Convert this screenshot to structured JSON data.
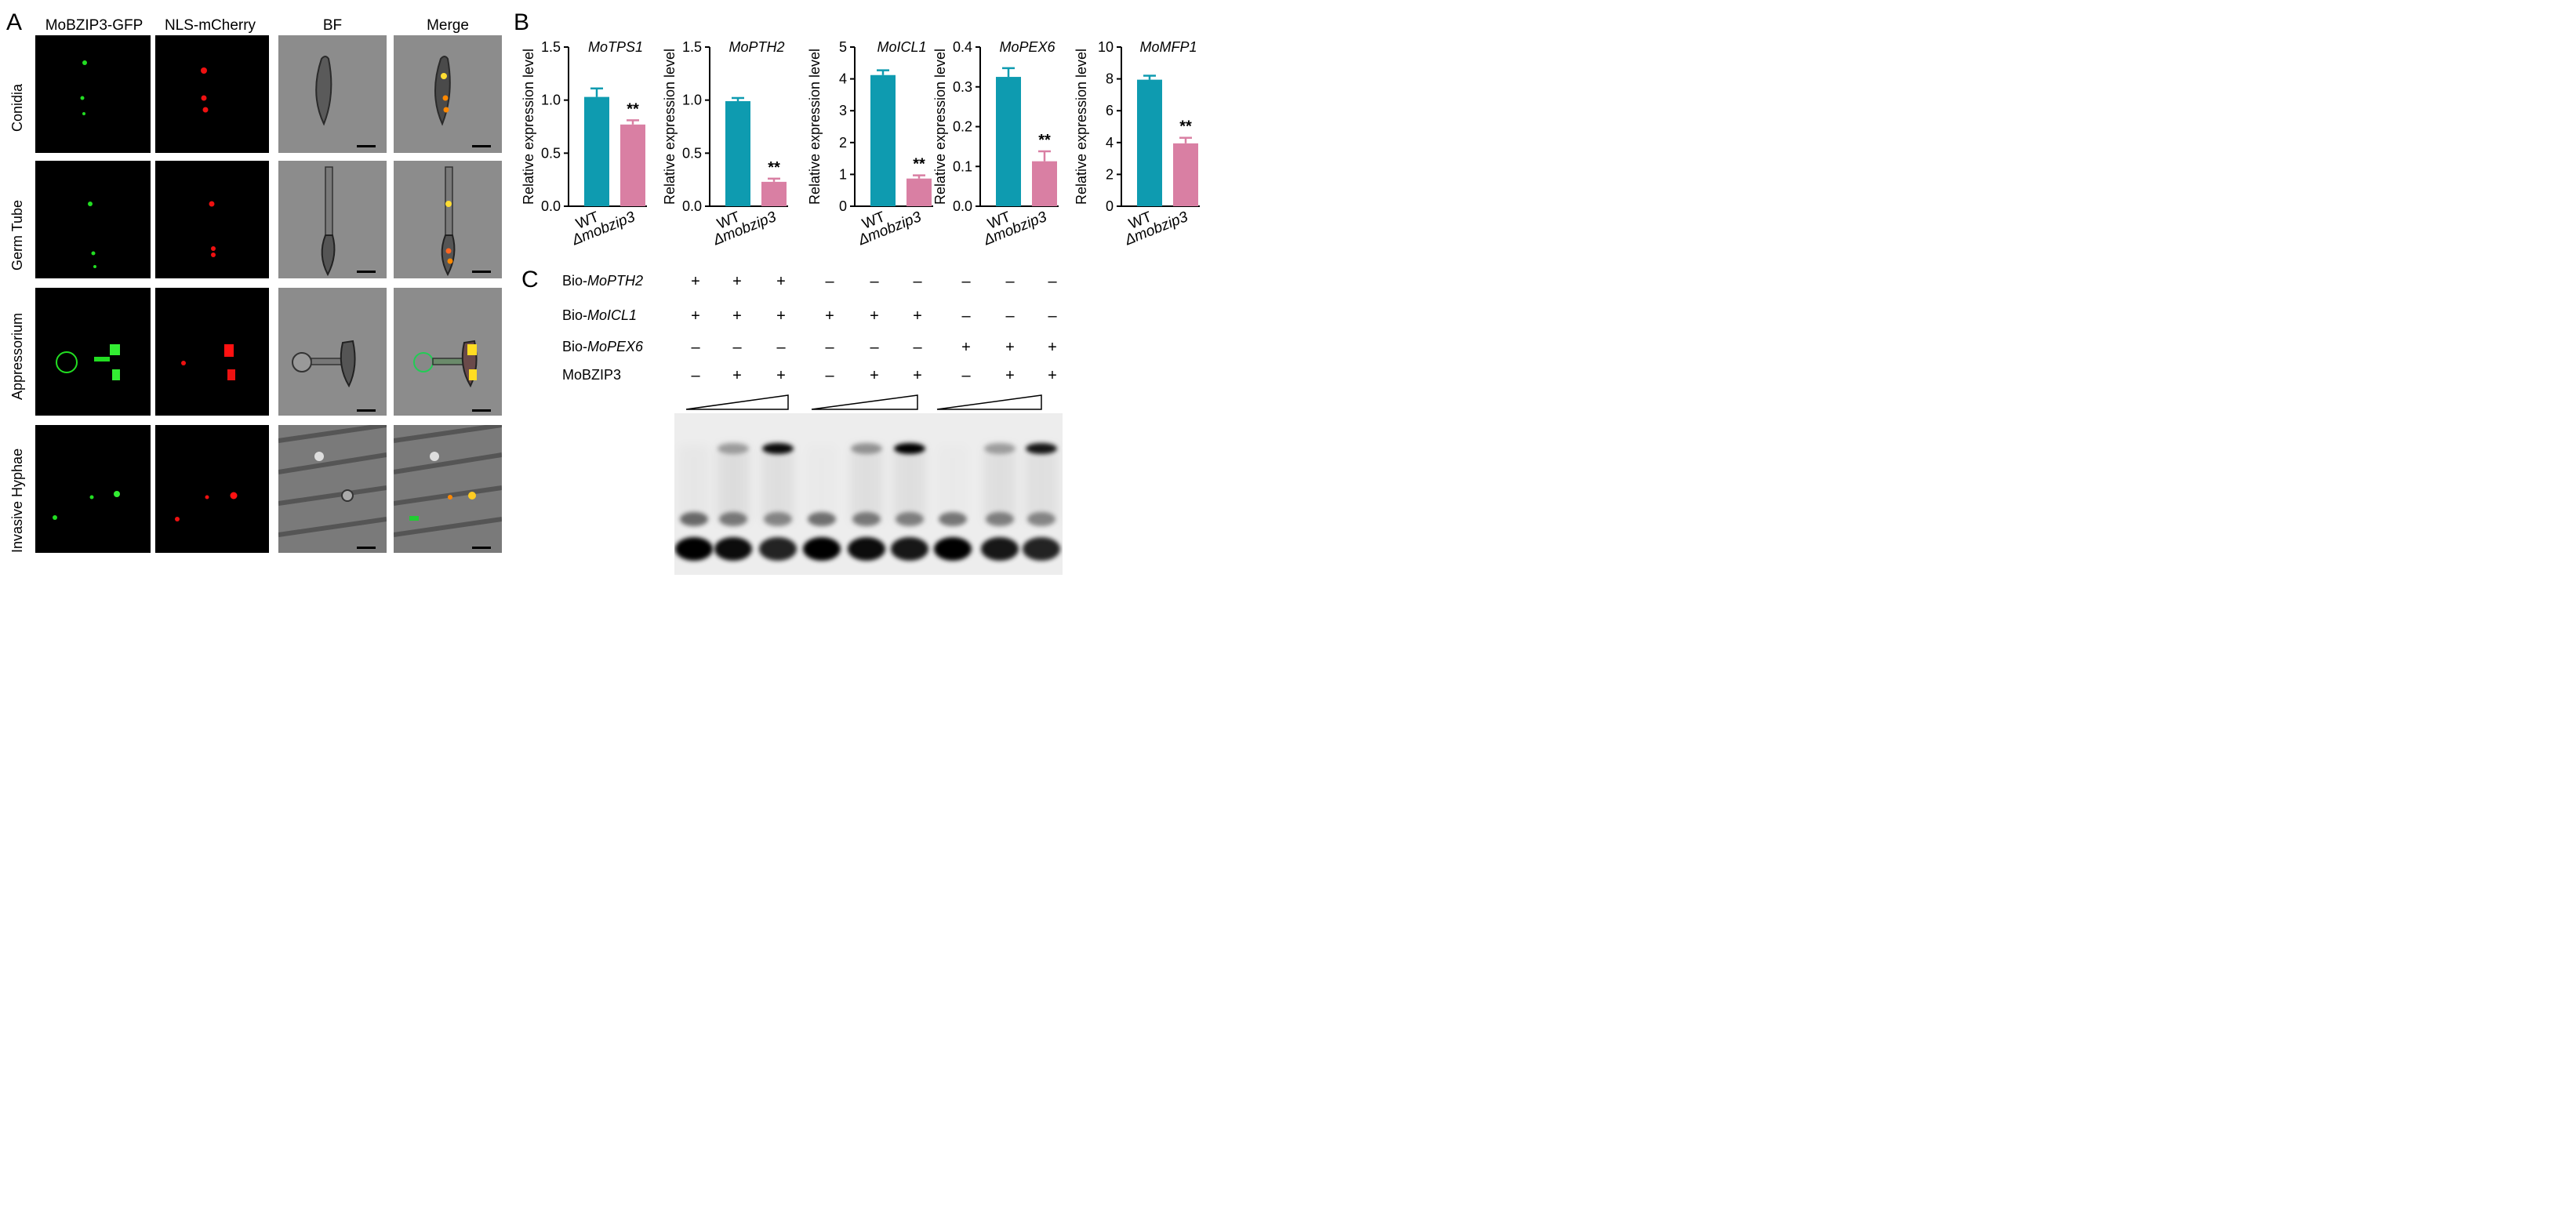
{
  "panel_a": {
    "letter": "A",
    "columns": [
      "MoBZIP3-GFP",
      "NLS-mCherry",
      "BF",
      "Merge"
    ],
    "rows": [
      "Conidia",
      "Germ Tube",
      "Appressorium",
      "Invasive Hyphae"
    ]
  },
  "panel_b": {
    "letter": "B",
    "ylabel": "Relative expression level",
    "xlabels": [
      "WT",
      "Δmobzip3"
    ],
    "colors": {
      "wt": "#0e9bb0",
      "mutant": "#d97fa3",
      "error": "#000000"
    }
  },
  "chart_data": [
    {
      "type": "bar",
      "title": "MoTPS1",
      "ylabel": "Relative expression level",
      "categories": [
        "WT",
        "Δmobzip3"
      ],
      "values": [
        1.03,
        0.77
      ],
      "errors": [
        0.08,
        0.04
      ],
      "ylim": [
        0,
        1.5
      ],
      "yticks": [
        "0.0",
        "0.5",
        "1.0",
        "1.5"
      ],
      "significance": "**"
    },
    {
      "type": "bar",
      "title": "MoPTH2",
      "ylabel": "Relative expression level",
      "categories": [
        "WT",
        "Δmobzip3"
      ],
      "values": [
        0.99,
        0.23
      ],
      "errors": [
        0.03,
        0.03
      ],
      "ylim": [
        0,
        1.5
      ],
      "yticks": [
        "0.0",
        "0.5",
        "1.0",
        "1.5"
      ],
      "significance": "**"
    },
    {
      "type": "bar",
      "title": "MoICL1",
      "ylabel": "Relative expression level",
      "categories": [
        "WT",
        "Δmobzip3"
      ],
      "values": [
        4.12,
        0.87
      ],
      "errors": [
        0.15,
        0.1
      ],
      "ylim": [
        0,
        5
      ],
      "yticks": [
        "0",
        "1",
        "2",
        "3",
        "4",
        "5"
      ],
      "significance": "**"
    },
    {
      "type": "bar",
      "title": "MoPEX6",
      "ylabel": "Relative expression level",
      "categories": [
        "WT",
        "Δmobzip3"
      ],
      "values": [
        0.325,
        0.113
      ],
      "errors": [
        0.022,
        0.025
      ],
      "ylim": [
        0,
        0.4
      ],
      "yticks": [
        "0.0",
        "0.1",
        "0.2",
        "0.3",
        "0.4"
      ],
      "significance": "**"
    },
    {
      "type": "bar",
      "title": "MoMFP1",
      "ylabel": "Relative expression level",
      "categories": [
        "WT",
        "Δmobzip3"
      ],
      "values": [
        7.95,
        3.95
      ],
      "errors": [
        0.25,
        0.35
      ],
      "ylim": [
        0,
        10
      ],
      "yticks": [
        "0",
        "2",
        "4",
        "6",
        "8",
        "10"
      ],
      "significance": "**"
    }
  ],
  "panel_c": {
    "letter": "C",
    "rows": [
      {
        "prefix": "Bio-",
        "italic": "MoPTH2",
        "signs": [
          "+",
          "+",
          "+",
          "–",
          "–",
          "–",
          "–",
          "–",
          "–"
        ]
      },
      {
        "prefix": "Bio-",
        "italic": "MoICL1",
        "signs": [
          "+",
          "+",
          "+",
          "+",
          "+",
          "+",
          "–",
          "–",
          "–"
        ]
      },
      {
        "prefix": "Bio-",
        "italic": "MoPEX6",
        "signs": [
          "–",
          "–",
          "–",
          "–",
          "–",
          "–",
          "+",
          "+",
          "+"
        ]
      },
      {
        "prefix": "",
        "italic": "",
        "label": "MoBZIP3",
        "signs": [
          "–",
          "+",
          "+",
          "–",
          "+",
          "+",
          "–",
          "+",
          "+"
        ]
      }
    ],
    "lanes": [
      {
        "free": 1.0,
        "shift": 0.0,
        "smear": 0.2
      },
      {
        "free": 0.85,
        "shift": 0.3,
        "smear": 0.55
      },
      {
        "free": 0.75,
        "shift": 0.95,
        "smear": 0.5
      },
      {
        "free": 0.95,
        "shift": 0.0,
        "smear": 0.1
      },
      {
        "free": 0.85,
        "shift": 0.35,
        "smear": 0.5
      },
      {
        "free": 0.8,
        "shift": 1.0,
        "smear": 0.5
      },
      {
        "free": 0.9,
        "shift": 0.0,
        "smear": 0.1
      },
      {
        "free": 0.8,
        "shift": 0.3,
        "smear": 0.5
      },
      {
        "free": 0.75,
        "shift": 0.9,
        "smear": 0.45
      }
    ]
  }
}
